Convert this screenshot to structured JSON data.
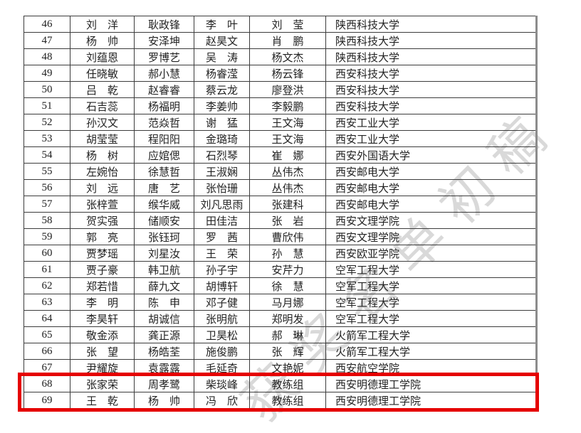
{
  "watermark": {
    "text": "获奖名单初稿",
    "color": "#d9d9d9"
  },
  "highlight": {
    "color": "#e50000",
    "row_numbers": [
      "68",
      "69"
    ]
  },
  "table": {
    "columns": [
      "no",
      "name1",
      "name2",
      "name3",
      "name4",
      "school"
    ],
    "rows": [
      {
        "no": "46",
        "names": [
          "刘　洋",
          "耿政锋",
          "李　叶",
          "刘　莹"
        ],
        "school": "陕西科技大学",
        "highlighted": false
      },
      {
        "no": "47",
        "names": [
          "杨　帅",
          "安泽坤",
          "赵昊文",
          "肖　鹏"
        ],
        "school": "陕西科技大学",
        "highlighted": false
      },
      {
        "no": "48",
        "names": [
          "刘蕴恩",
          "罗博艺",
          "吴　涛",
          "杨文杰"
        ],
        "school": "陕西科技大学",
        "highlighted": false
      },
      {
        "no": "49",
        "names": [
          "任晓敏",
          "郝小慧",
          "杨睿滢",
          "杨云锋"
        ],
        "school": "西安科技大学",
        "highlighted": false
      },
      {
        "no": "50",
        "names": [
          "吕　乾",
          "赵睿睿",
          "蔡云龙",
          "廖登洪"
        ],
        "school": "西安科技大学",
        "highlighted": false
      },
      {
        "no": "51",
        "names": [
          "石吉蕊",
          "杨福明",
          "李姜帅",
          "李毅鹏"
        ],
        "school": "西安科技大学",
        "highlighted": false
      },
      {
        "no": "52",
        "names": [
          "孙汉文",
          "范焱哲",
          "谢　猛",
          "王文海"
        ],
        "school": "西安工业大学",
        "highlighted": false
      },
      {
        "no": "53",
        "names": [
          "胡莹莹",
          "程阳阳",
          "金璐琦",
          "王文海"
        ],
        "school": "西安工业大学",
        "highlighted": false
      },
      {
        "no": "54",
        "names": [
          "杨　树",
          "应婠偲",
          "石烈琴",
          "崔　娜"
        ],
        "school": "西安外国语大学",
        "highlighted": false
      },
      {
        "no": "55",
        "names": [
          "左婉怡",
          "徐慧哲",
          "王淑娴",
          "丛伟杰"
        ],
        "school": "西安邮电大学",
        "highlighted": false
      },
      {
        "no": "56",
        "names": [
          "刘　远",
          "唐　艺",
          "张怡珊",
          "丛伟杰"
        ],
        "school": "西安邮电大学",
        "highlighted": false
      },
      {
        "no": "57",
        "names": [
          "张梓萱",
          "缑华威",
          "刘凡思雨",
          "张建科"
        ],
        "school": "西安邮电大学",
        "highlighted": false
      },
      {
        "no": "58",
        "names": [
          "贺实强",
          "储顺安",
          "田佳洁",
          "张　岩"
        ],
        "school": "西安文理学院",
        "highlighted": false
      },
      {
        "no": "59",
        "names": [
          "郭　亮",
          "张钰珂",
          "罗　茜",
          "曹欣伟"
        ],
        "school": "西安文理学院",
        "highlighted": false
      },
      {
        "no": "60",
        "names": [
          "贾梦瑶",
          "刘星汝",
          "王　荣",
          "孙　慧"
        ],
        "school": "西安欧亚学院",
        "highlighted": false
      },
      {
        "no": "61",
        "names": [
          "贾子豪",
          "韩卫航",
          "孙子宇",
          "安芹力"
        ],
        "school": "空军工程大学",
        "highlighted": false
      },
      {
        "no": "62",
        "names": [
          "郑若惜",
          "薛九文",
          "胡博轩",
          "徐　慧"
        ],
        "school": "空军工程大学",
        "highlighted": false
      },
      {
        "no": "63",
        "names": [
          "李　明",
          "陈　申",
          "邓子健",
          "马月娜"
        ],
        "school": "空军工程大学",
        "highlighted": false
      },
      {
        "no": "64",
        "names": [
          "李昊轩",
          "胡诚信",
          "张明航",
          "郑明发"
        ],
        "school": "空军工程大学",
        "highlighted": false
      },
      {
        "no": "65",
        "names": [
          "敬金添",
          "龚正源",
          "卫昊松",
          "郝　琳"
        ],
        "school": "火箭军工程大学",
        "highlighted": false
      },
      {
        "no": "66",
        "names": [
          "张　望",
          "杨皓荃",
          "施俊鹏",
          "张　辉"
        ],
        "school": "火箭军工程大学",
        "highlighted": false
      },
      {
        "no": "67",
        "names": [
          "尹耀旋",
          "袁露露",
          "毛延奇",
          "文艳妮"
        ],
        "school": "西安航空学院",
        "highlighted": false
      },
      {
        "no": "68",
        "names": [
          "张家荣",
          "周孝鹭",
          "柴琰峰",
          "教练组"
        ],
        "school": "西安明德理工学院",
        "highlighted": true
      },
      {
        "no": "69",
        "names": [
          "王　乾",
          "杨　帅",
          "冯　欣",
          "教练组"
        ],
        "school": "西安明德理工学院",
        "highlighted": true
      }
    ]
  }
}
